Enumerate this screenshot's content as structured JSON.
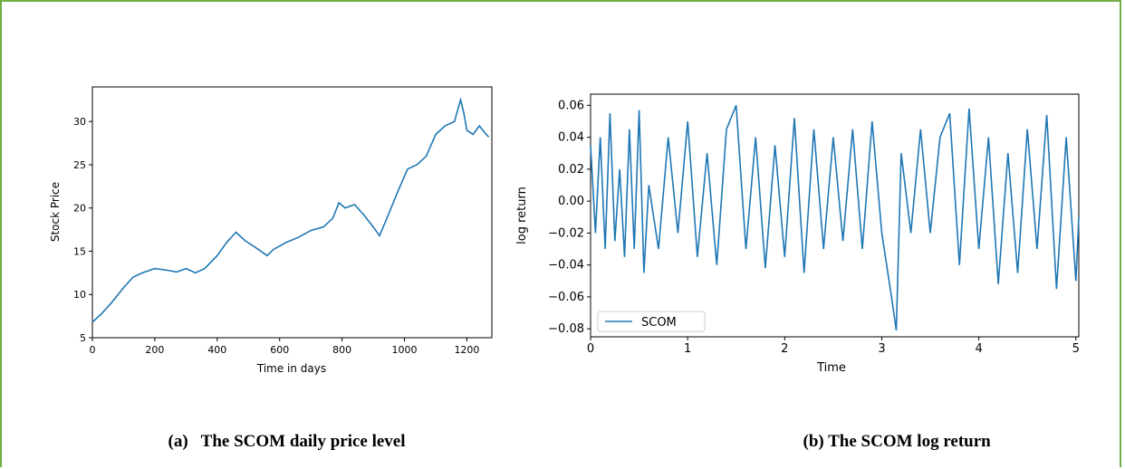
{
  "colors": {
    "frame": "#70ad47",
    "series": "#1f77b4"
  },
  "captions": {
    "a_label": "(a)",
    "a_text": "The SCOM daily price level",
    "b_text": "(b) The SCOM log return"
  },
  "chart_data": [
    {
      "type": "line",
      "xlabel": "Time in days",
      "ylabel": "Stock Price",
      "xlim": [
        0,
        1280
      ],
      "ylim": [
        5,
        34
      ],
      "xticks": [
        0,
        200,
        400,
        600,
        800,
        1000,
        1200
      ],
      "yticks": [
        5,
        10,
        15,
        20,
        25,
        30
      ],
      "grid": false,
      "series": [
        {
          "x": [
            0,
            30,
            60,
            100,
            130,
            160,
            200,
            240,
            270,
            300,
            330,
            360,
            400,
            430,
            460,
            490,
            520,
            560,
            580,
            620,
            660,
            700,
            740,
            770,
            790,
            810,
            840,
            870,
            900,
            920,
            940,
            980,
            1010,
            1040,
            1070,
            1100,
            1130,
            1160,
            1180,
            1190,
            1200,
            1220,
            1240,
            1260,
            1270
          ],
          "y": [
            6.8,
            7.8,
            9.0,
            10.8,
            12.0,
            12.5,
            13.0,
            12.8,
            12.6,
            13.0,
            12.5,
            13.0,
            14.5,
            16.0,
            17.2,
            16.2,
            15.5,
            14.5,
            15.2,
            16.0,
            16.6,
            17.4,
            17.8,
            18.8,
            20.6,
            20.0,
            20.4,
            19.2,
            17.8,
            16.8,
            18.5,
            22.0,
            24.5,
            25.0,
            26.0,
            28.5,
            29.5,
            30.0,
            32.5,
            31.0,
            29.0,
            28.5,
            29.5,
            28.6,
            28.2
          ]
        }
      ]
    },
    {
      "type": "line",
      "xlabel": "Time",
      "ylabel": "log return",
      "xlim": [
        0,
        5.03
      ],
      "ylim": [
        -0.085,
        0.067
      ],
      "xticks": [
        0,
        1,
        2,
        3,
        4,
        5
      ],
      "yticks": [
        -0.08,
        -0.06,
        -0.04,
        -0.02,
        0.0,
        0.02,
        0.04,
        0.06
      ],
      "ytick_labels": [
        "−0.08",
        "−0.06",
        "−0.04",
        "−0.02",
        "0.00",
        "0.02",
        "0.04",
        "0.06"
      ],
      "grid": false,
      "legend": "bottom-left",
      "series": [
        {
          "name": "SCOM",
          "x": [
            0,
            0.05,
            0.1,
            0.15,
            0.2,
            0.25,
            0.3,
            0.35,
            0.4,
            0.45,
            0.5,
            0.55,
            0.6,
            0.7,
            0.8,
            0.9,
            1.0,
            1.1,
            1.2,
            1.3,
            1.4,
            1.5,
            1.6,
            1.7,
            1.8,
            1.9,
            2.0,
            2.1,
            2.2,
            2.3,
            2.4,
            2.5,
            2.6,
            2.7,
            2.8,
            2.9,
            3.0,
            3.1,
            3.15,
            3.2,
            3.3,
            3.4,
            3.5,
            3.6,
            3.7,
            3.8,
            3.9,
            4.0,
            4.1,
            4.2,
            4.3,
            4.4,
            4.5,
            4.6,
            4.7,
            4.8,
            4.9,
            5.0,
            5.03
          ],
          "y": [
            0.035,
            -0.02,
            0.04,
            -0.03,
            0.055,
            -0.025,
            0.02,
            -0.035,
            0.045,
            -0.03,
            0.057,
            -0.045,
            0.01,
            -0.03,
            0.04,
            -0.02,
            0.05,
            -0.035,
            0.03,
            -0.04,
            0.045,
            0.06,
            -0.03,
            0.04,
            -0.042,
            0.035,
            -0.035,
            0.052,
            -0.045,
            0.045,
            -0.03,
            0.04,
            -0.025,
            0.045,
            -0.03,
            0.05,
            -0.02,
            -0.06,
            -0.081,
            0.03,
            -0.02,
            0.045,
            -0.02,
            0.04,
            0.055,
            -0.04,
            0.058,
            -0.03,
            0.04,
            -0.052,
            0.03,
            -0.045,
            0.045,
            -0.03,
            0.054,
            -0.055,
            0.04,
            -0.05,
            -0.01
          ]
        }
      ]
    }
  ]
}
